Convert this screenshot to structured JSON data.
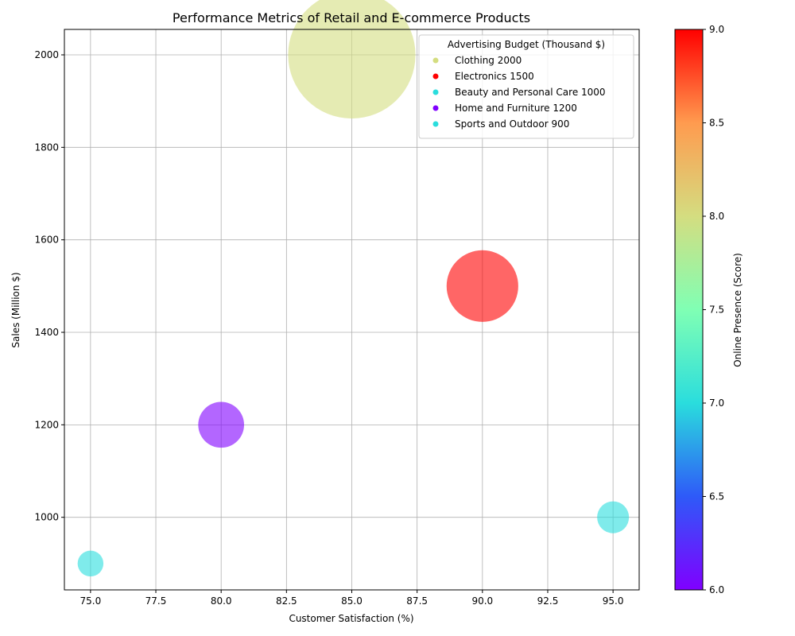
{
  "chart_data": {
    "type": "scatter",
    "title": "Performance Metrics of Retail and E-commerce Products",
    "xlabel": "Customer Satisfaction (%)",
    "ylabel": "Sales (Million $)",
    "xlim": [
      74.0,
      96.0
    ],
    "ylim": [
      843,
      2055
    ],
    "x_ticks": [
      "75.0",
      "77.5",
      "80.0",
      "82.5",
      "85.0",
      "87.5",
      "90.0",
      "92.5",
      "95.0"
    ],
    "y_ticks": [
      "1000",
      "1200",
      "1400",
      "1600",
      "1800",
      "2000"
    ],
    "grid": true,
    "legend": {
      "title": "Advertising Budget (Thousand $)",
      "placement": "top-right",
      "entries": [
        "Clothing 2000",
        "Electronics 1500",
        "Beauty and Personal Care 1000",
        "Home and Furniture 1200",
        "Sports and Outdoor 900"
      ]
    },
    "colorbar": {
      "label": "Online Presence (Score)",
      "range": [
        6.0,
        9.0
      ],
      "ticks": [
        "6.0",
        "6.5",
        "7.0",
        "7.5",
        "8.0",
        "8.5",
        "9.0"
      ],
      "colormap": "rainbow"
    },
    "points": [
      {
        "category": "Clothing",
        "satisfaction": 85,
        "sales": 2000,
        "online_presence": 8,
        "color": "#d4dd80"
      },
      {
        "category": "Electronics",
        "satisfaction": 90,
        "sales": 1500,
        "online_presence": 9,
        "color": "#ff0000"
      },
      {
        "category": "Beauty and Personal Care",
        "satisfaction": 95,
        "sales": 1000,
        "online_presence": 7,
        "color": "#2adddd"
      },
      {
        "category": "Home and Furniture",
        "satisfaction": 80,
        "sales": 1200,
        "online_presence": 6,
        "color": "#8000ff"
      },
      {
        "category": "Sports and Outdoor",
        "satisfaction": 75,
        "sales": 900,
        "online_presence": 7,
        "color": "#2adddd"
      }
    ]
  }
}
